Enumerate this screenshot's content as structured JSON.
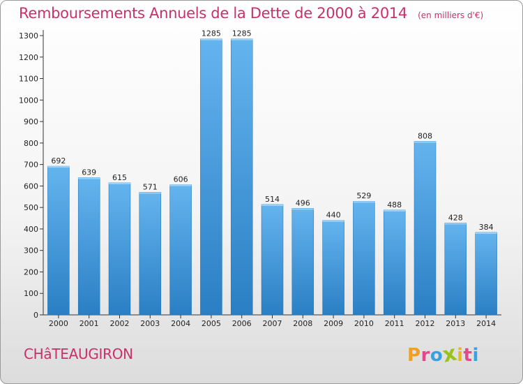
{
  "header": {
    "title": "Remboursements Annuels de la Dette de 2000 à 2014",
    "subtitle": "(en milliers d'€)"
  },
  "footer": {
    "town": "CHâTEAUGIRON",
    "brand_letters": [
      "P",
      "r",
      "o",
      "x",
      "i",
      "t",
      "i"
    ],
    "brand_colors": [
      "#f0a020",
      "#e04a8a",
      "#3aa0e0",
      "#9ac21a",
      "#e8b820",
      "#e04a8a",
      "#3aa0e0"
    ]
  },
  "chart_data": {
    "type": "bar",
    "categories": [
      "2000",
      "2001",
      "2002",
      "2003",
      "2004",
      "2005",
      "2006",
      "2007",
      "2008",
      "2009",
      "2010",
      "2011",
      "2012",
      "2013",
      "2014"
    ],
    "values": [
      692,
      639,
      615,
      571,
      606,
      1285,
      1285,
      514,
      496,
      440,
      529,
      488,
      808,
      428,
      384
    ],
    "title": "Remboursements Annuels de la Dette de 2000 à 2014",
    "subtitle": "(en milliers d'€)",
    "xlabel": "",
    "ylabel": "",
    "ylim": [
      0,
      1300
    ],
    "yticks": [
      0,
      100,
      200,
      300,
      400,
      500,
      600,
      700,
      800,
      900,
      1000,
      1100,
      1200,
      1300
    ],
    "grid": false,
    "data_labels": true,
    "colors": {
      "bar_light": "#64b4ee",
      "bar_dark": "#2a7fc4",
      "axis": "#333333",
      "text": "#222222"
    }
  }
}
